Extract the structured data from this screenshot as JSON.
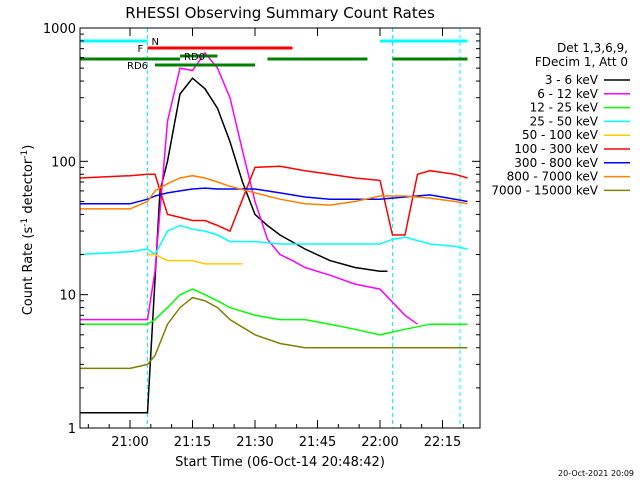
{
  "chart_data": {
    "type": "line",
    "title": "RHESSI Observing Summary Count Rates",
    "xlabel": "Start Time (06-Oct-14 20:48:42)",
    "ylabel_prefix": "Count Rate (s",
    "ylabel_sup1": "-1",
    "ylabel_mid": " detector",
    "ylabel_sup2": "-1",
    "ylabel_suffix": ")",
    "yscale": "log",
    "ylim": [
      1,
      1000
    ],
    "xlim_minutes": [
      20.8,
      22.4
    ],
    "x_ticks": [
      {
        "label": "21:00",
        "v": 21.0
      },
      {
        "label": "21:15",
        "v": 21.25
      },
      {
        "label": "21:30",
        "v": 21.5
      },
      {
        "label": "21:45",
        "v": 21.75
      },
      {
        "label": "22:00",
        "v": 22.0
      },
      {
        "label": "22:15",
        "v": 22.25
      }
    ],
    "y_ticks": [
      {
        "label": "1",
        "v": 1
      },
      {
        "label": "10",
        "v": 10
      },
      {
        "label": "100",
        "v": 100
      },
      {
        "label": "1000",
        "v": 1000
      }
    ],
    "legend": {
      "header": [
        "Det 1,3,6,9,",
        "FDecim 1, Att 0"
      ],
      "placement": "right"
    },
    "series": [
      {
        "name": "3 - 6 keV",
        "color": "#000000",
        "x": [
          20.8,
          21.07,
          21.12,
          21.15,
          21.2,
          21.25,
          21.3,
          21.35,
          21.4,
          21.45,
          21.5,
          21.55,
          21.6,
          21.7,
          21.8,
          21.9,
          22.0,
          22.03
        ],
        "y": [
          1.3,
          1.3,
          60,
          100,
          320,
          420,
          350,
          250,
          140,
          70,
          40,
          33,
          28,
          22,
          18,
          16,
          15,
          15
        ]
      },
      {
        "name": "6 - 12 keV",
        "color": "#ff00ff",
        "x": [
          20.8,
          21.07,
          21.1,
          21.15,
          21.2,
          21.25,
          21.3,
          21.35,
          21.4,
          21.45,
          21.5,
          21.55,
          21.6,
          21.65,
          21.7,
          21.8,
          21.9,
          22.0,
          22.1,
          22.15
        ],
        "y": [
          6.5,
          6.5,
          15,
          200,
          500,
          480,
          650,
          500,
          300,
          120,
          50,
          26,
          20,
          18,
          16,
          14,
          12,
          11,
          7,
          6
        ]
      },
      {
        "name": "12 - 25 keV",
        "color": "#00ff00",
        "x": [
          20.8,
          21.0,
          21.07,
          21.1,
          21.15,
          21.2,
          21.25,
          21.3,
          21.35,
          21.4,
          21.5,
          21.6,
          21.7,
          21.8,
          21.9,
          22.0,
          22.1,
          22.2,
          22.35
        ],
        "y": [
          6,
          6,
          6,
          6.5,
          8,
          10,
          11,
          10,
          9,
          8,
          7,
          6.5,
          6.5,
          6,
          5.5,
          5,
          5.5,
          6,
          6
        ]
      },
      {
        "name": "25 - 50 keV",
        "color": "#00ffff",
        "x": [
          20.8,
          21.0,
          21.07,
          21.1,
          21.15,
          21.2,
          21.25,
          21.3,
          21.35,
          21.4,
          21.5,
          21.6,
          21.7,
          21.8,
          21.9,
          22.0,
          22.05,
          22.1,
          22.2,
          22.3,
          22.35
        ],
        "y": [
          20,
          21,
          22,
          20,
          30,
          33,
          31,
          30,
          28,
          25,
          25,
          24,
          24,
          24,
          24,
          24,
          26,
          27,
          24,
          23,
          22
        ]
      },
      {
        "name": "50 - 100 keV",
        "color": "#ffcc00",
        "x": [
          21.07,
          21.1,
          21.15,
          21.2,
          21.25,
          21.3,
          21.35,
          21.4,
          21.45
        ],
        "y": [
          20,
          20,
          18,
          18,
          18,
          17,
          17,
          17,
          17
        ]
      },
      {
        "name": "100 - 300 keV",
        "color": "#ff0000",
        "x": [
          20.8,
          21.0,
          21.07,
          21.1,
          21.15,
          21.2,
          21.25,
          21.3,
          21.35,
          21.4,
          21.5,
          21.6,
          21.7,
          21.8,
          21.9,
          22.0,
          22.05,
          22.1,
          22.15,
          22.2,
          22.3,
          22.35
        ],
        "y": [
          75,
          78,
          80,
          80,
          40,
          38,
          36,
          36,
          33,
          30,
          90,
          92,
          85,
          80,
          75,
          72,
          28,
          28,
          80,
          85,
          80,
          75
        ]
      },
      {
        "name": "300 - 800 keV",
        "color": "#0000ff",
        "x": [
          20.8,
          21.0,
          21.07,
          21.1,
          21.15,
          21.2,
          21.25,
          21.3,
          21.35,
          21.4,
          21.5,
          21.6,
          21.7,
          21.8,
          21.9,
          22.0,
          22.1,
          22.2,
          22.3,
          22.35
        ],
        "y": [
          48,
          48,
          52,
          55,
          58,
          60,
          62,
          63,
          62,
          62,
          62,
          58,
          54,
          52,
          52,
          52,
          54,
          56,
          52,
          50
        ]
      },
      {
        "name": "800 - 7000 keV",
        "color": "#ff8000",
        "x": [
          20.8,
          21.0,
          21.07,
          21.1,
          21.15,
          21.2,
          21.25,
          21.3,
          21.35,
          21.4,
          21.5,
          21.6,
          21.7,
          21.8,
          21.9,
          22.0,
          22.1,
          22.2,
          22.3,
          22.35
        ],
        "y": [
          44,
          44,
          50,
          60,
          68,
          75,
          78,
          75,
          70,
          65,
          58,
          52,
          48,
          47,
          50,
          55,
          55,
          53,
          50,
          48
        ]
      },
      {
        "name": "7000 - 15000 keV",
        "color": "#808000",
        "x": [
          20.8,
          21.0,
          21.07,
          21.1,
          21.15,
          21.2,
          21.25,
          21.3,
          21.35,
          21.4,
          21.5,
          21.6,
          21.7,
          21.8,
          21.9,
          22.0,
          22.1,
          22.2,
          22.35
        ],
        "y": [
          2.8,
          2.8,
          3,
          3.5,
          6,
          8,
          9.5,
          9,
          8,
          6.5,
          5,
          4.3,
          4,
          4,
          4,
          4,
          4,
          4,
          4
        ]
      }
    ],
    "flags": [
      {
        "label": "N",
        "color": "#00ffff",
        "segments": [
          [
            20.8,
            21.07
          ],
          [
            22.0,
            22.35
          ]
        ],
        "row": "n"
      },
      {
        "label": "F",
        "color": "#ff0000",
        "segments": [
          [
            21.07,
            21.65
          ]
        ],
        "row": "f"
      },
      {
        "label": "RD0",
        "color": "#008000",
        "segments": [
          [
            21.2,
            21.35
          ]
        ],
        "row": "rd0"
      },
      {
        "label": "",
        "color": "#008000",
        "segments": [
          [
            20.8,
            21.2
          ],
          [
            21.55,
            21.95
          ],
          [
            22.05,
            22.35
          ]
        ],
        "row": "rd0b"
      },
      {
        "label": "RD6",
        "color": "#008000",
        "segments": [
          [
            21.1,
            21.5
          ]
        ],
        "row": "rd6"
      }
    ],
    "vlines": [
      {
        "color": "#00ffff",
        "x": [
          21.07,
          22.05,
          22.32
        ]
      }
    ]
  },
  "footer": {
    "timestamp": "20-Oct-2021 20:09"
  }
}
